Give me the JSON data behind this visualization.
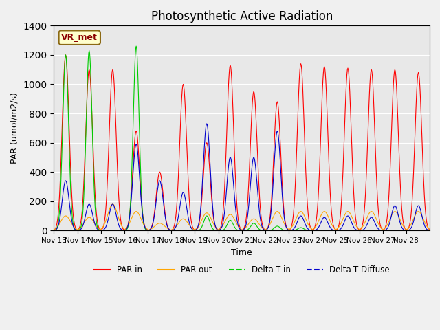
{
  "title": "Photosynthetic Active Radiation",
  "ylabel": "PAR (umol/m2/s)",
  "xlabel": "Time",
  "ylim": [
    0,
    1400
  ],
  "annotation_label": "VR_met",
  "background_color": "#f0f0f0",
  "plot_bg_color": "#e8e8e8",
  "colors": {
    "par_in": "#ff0000",
    "par_out": "#ffa500",
    "delta_t_in": "#00cc00",
    "delta_t_diffuse": "#0000cc"
  },
  "legend_labels": [
    "PAR in",
    "PAR out",
    "Delta-T in",
    "Delta-T Diffuse"
  ],
  "x_tick_labels": [
    "Nov 13",
    "Nov 14",
    "Nov 15",
    "Nov 16",
    "Nov 17",
    "Nov 18",
    "Nov 19",
    "Nov 20",
    "Nov 21",
    "Nov 22",
    "Nov 23",
    "Nov 24",
    "Nov 25",
    "Nov 26",
    "Nov 27",
    "Nov 28"
  ],
  "n_days": 16,
  "points_per_day": 48,
  "day_par_in_peaks": [
    1200,
    1100,
    1100,
    680,
    400,
    1000,
    600,
    1130,
    950,
    880,
    1140,
    1120,
    1110,
    1100,
    1100,
    1080
  ],
  "day_par_out_peaks": [
    100,
    90,
    180,
    130,
    50,
    80,
    120,
    110,
    80,
    130,
    130,
    130,
    130,
    130,
    130,
    130
  ],
  "day_delta_t_in_peaks": [
    1200,
    1230,
    0,
    1260,
    0,
    0,
    100,
    70,
    50,
    30,
    20,
    0,
    0,
    0,
    0,
    0
  ],
  "day_delta_t_diff_peaks": [
    340,
    180,
    180,
    590,
    340,
    260,
    730,
    500,
    500,
    680,
    100,
    90,
    100,
    90,
    170,
    170
  ]
}
